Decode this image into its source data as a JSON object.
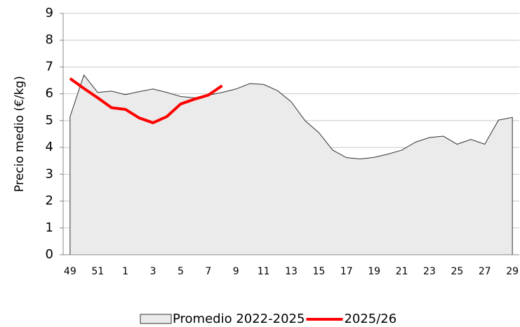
{
  "chart_data": {
    "type": "line",
    "y_label": "Precio medio (€/kg)",
    "categories": [
      "49",
      null,
      "51",
      null,
      "1",
      null,
      "3",
      null,
      "5",
      null,
      "7",
      null,
      "9",
      null,
      "11",
      null,
      "13",
      null,
      "15",
      null,
      "17",
      null,
      "19",
      null,
      "21",
      null,
      "23",
      null,
      "25",
      null,
      "27",
      null,
      "29"
    ],
    "series": [
      {
        "name": "Promedio 2022-2025",
        "type": "area",
        "color": "#ebebeb",
        "stroke": "#333333",
        "values": [
          5.15,
          6.7,
          6.05,
          6.1,
          5.97,
          6.08,
          6.18,
          6.05,
          5.9,
          5.85,
          5.95,
          6.05,
          6.18,
          6.38,
          6.35,
          6.12,
          5.7,
          5.0,
          4.55,
          3.9,
          3.62,
          3.57,
          3.63,
          3.75,
          3.9,
          4.2,
          4.37,
          4.42,
          4.12,
          4.3,
          4.12,
          5.02,
          5.12
        ]
      },
      {
        "name": "2025/26",
        "type": "line",
        "color": "#ff0000",
        "values": [
          6.57,
          6.2,
          5.85,
          5.48,
          5.42,
          5.1,
          4.92,
          5.15,
          5.62,
          5.8,
          5.95,
          6.3,
          null,
          null,
          null,
          null,
          null,
          null,
          null,
          null,
          null,
          null,
          null,
          null,
          null,
          null,
          null,
          null,
          null,
          null,
          null,
          null,
          null
        ]
      }
    ],
    "ylim": [
      0,
      9
    ],
    "yticks": [
      0,
      1,
      2,
      3,
      4,
      5,
      6,
      7,
      8,
      9
    ],
    "grid": true,
    "legend": "bottom"
  }
}
